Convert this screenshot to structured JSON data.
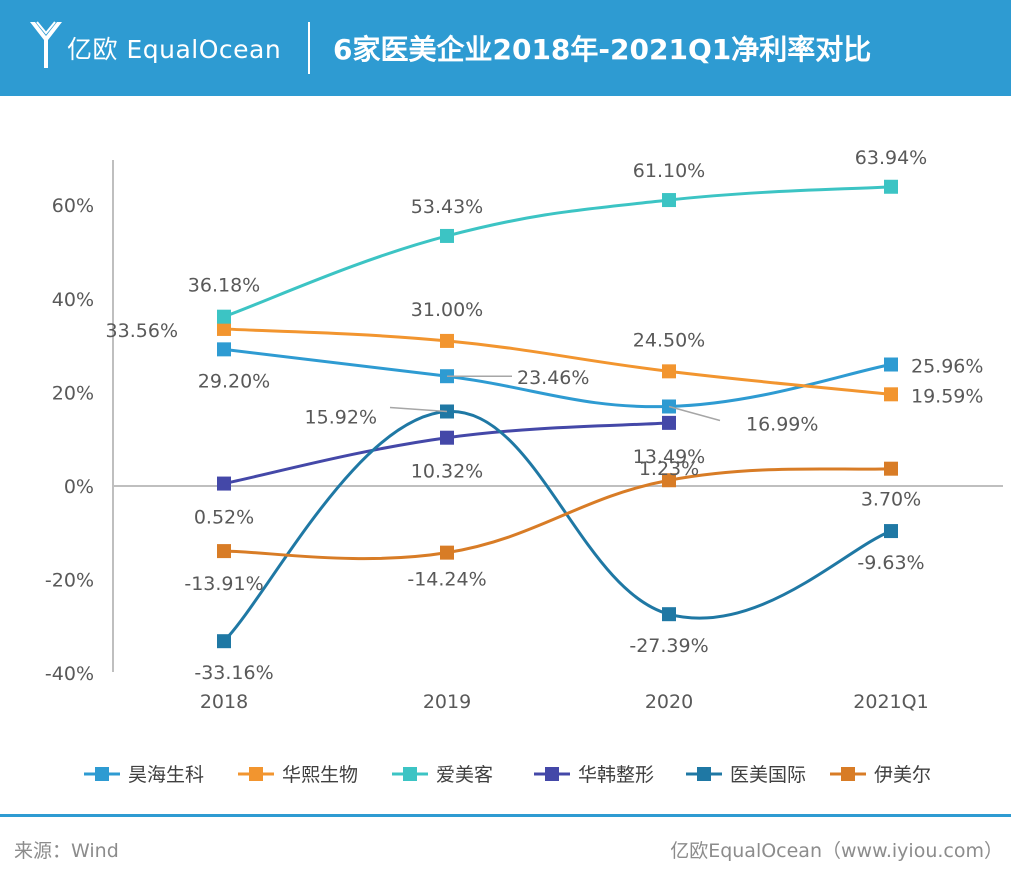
{
  "header": {
    "logo_text": "亿欧 EqualOcean",
    "title": "6家医美企业2018年-2021Q1净利率对比"
  },
  "footer": {
    "source": "来源：Wind",
    "credit": "亿欧EqualOcean（www.iyiou.com）"
  },
  "colors": {
    "header_bg": "#2e9bd2",
    "footer_line": "#2e9bd2"
  },
  "chart_data": {
    "type": "line",
    "categories": [
      "2018",
      "2019",
      "2020",
      "2021Q1"
    ],
    "ylim": [
      -40,
      70
    ],
    "yticks": [
      -40,
      -20,
      0,
      20,
      40,
      60
    ],
    "ytick_labels": [
      "-40%",
      "-20%",
      "0%",
      "20%",
      "40%",
      "60%"
    ],
    "grid": false,
    "legend_position": "bottom",
    "series": [
      {
        "name": "昊海生科",
        "color": "#2e9bd2",
        "values": [
          29.2,
          23.46,
          16.99,
          25.96
        ],
        "labels": [
          "29.20%",
          "23.46%",
          "16.99%",
          "25.96%"
        ]
      },
      {
        "name": "华熙生物",
        "color": "#f2952f",
        "values": [
          33.56,
          31.0,
          24.5,
          19.59
        ],
        "labels": [
          "33.56%",
          "31.00%",
          "24.50%",
          "19.59%"
        ]
      },
      {
        "name": "爱美客",
        "color": "#3cc4c4",
        "values": [
          36.18,
          53.43,
          61.1,
          63.94
        ],
        "labels": [
          "36.18%",
          "53.43%",
          "61.10%",
          "63.94%"
        ]
      },
      {
        "name": "华韩整形",
        "color": "#4448a8",
        "values": [
          0.52,
          10.32,
          13.49,
          null
        ],
        "labels": [
          "0.52%",
          "10.32%",
          "13.49%",
          ""
        ]
      },
      {
        "name": "医美国际",
        "color": "#1f78a4",
        "values": [
          -33.16,
          15.92,
          -27.39,
          -9.63
        ],
        "labels": [
          "-33.16%",
          "15.92%",
          "-27.39%",
          "-9.63%"
        ]
      },
      {
        "name": "伊美尔",
        "color": "#d87c26",
        "values": [
          -13.91,
          -14.24,
          1.23,
          3.7
        ],
        "labels": [
          "-13.91%",
          "-14.24%",
          "1.23%",
          "3.70%"
        ]
      }
    ]
  }
}
